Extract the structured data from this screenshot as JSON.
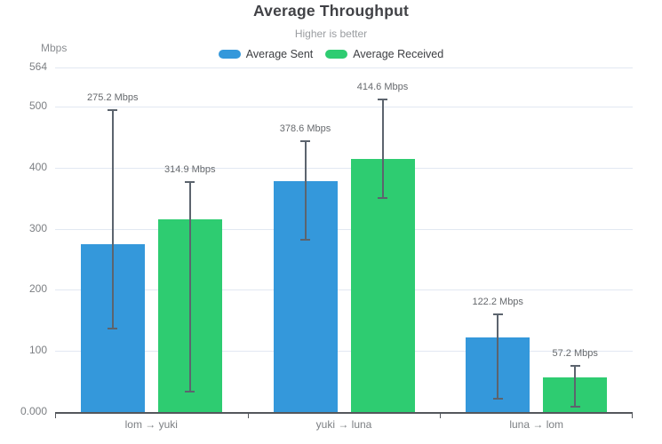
{
  "title": "Average Throughput",
  "subtitle": "Higher is better",
  "legend": {
    "items": [
      {
        "label": "Average Sent",
        "color": "#3498db"
      },
      {
        "label": "Average Received",
        "color": "#2ecc71"
      }
    ]
  },
  "y_axis": {
    "unit_label": "Mbps",
    "max": 564,
    "ticks": [
      {
        "value": 564,
        "label": "564"
      },
      {
        "value": 500,
        "label": "500"
      },
      {
        "value": 400,
        "label": "400"
      },
      {
        "value": 300,
        "label": "300"
      },
      {
        "value": 200,
        "label": "200"
      },
      {
        "value": 100,
        "label": "100"
      },
      {
        "value": 0,
        "label": "0.000"
      }
    ]
  },
  "chart_data": {
    "type": "bar",
    "title": "Average Throughput",
    "subtitle": "Higher is better",
    "xlabel": "",
    "ylabel": "Mbps",
    "ylim": [
      0,
      564
    ],
    "grid": true,
    "legend_position": "top-center",
    "categories": [
      "lom → yuki",
      "yuki → luna",
      "luna → lom"
    ],
    "series": [
      {
        "name": "Average Sent",
        "color": "#3498db",
        "values": [
          275.2,
          378.6,
          122.2
        ],
        "value_labels": [
          "275.2 Mbps",
          "378.6 Mbps",
          "122.2 Mbps"
        ],
        "error_low": [
          137,
          282,
          22
        ],
        "error_high": [
          495,
          444,
          160
        ]
      },
      {
        "name": "Average Received",
        "color": "#2ecc71",
        "values": [
          314.9,
          414.6,
          57.2
        ],
        "value_labels": [
          "314.9 Mbps",
          "414.6 Mbps",
          "57.2 Mbps"
        ],
        "error_low": [
          34,
          350,
          9
        ],
        "error_high": [
          377,
          512,
          75
        ]
      }
    ],
    "colors": {
      "grid": "#e2e8f2",
      "axis": "#54575c",
      "error_bar": "#5c646e"
    }
  }
}
